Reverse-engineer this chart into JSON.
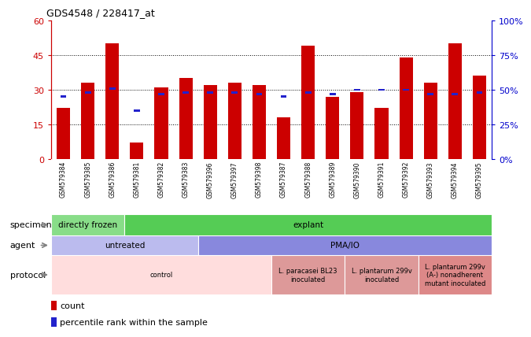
{
  "title": "GDS4548 / 228417_at",
  "samples": [
    "GSM579384",
    "GSM579385",
    "GSM579386",
    "GSM579381",
    "GSM579382",
    "GSM579383",
    "GSM579396",
    "GSM579397",
    "GSM579398",
    "GSM579387",
    "GSM579388",
    "GSM579389",
    "GSM579390",
    "GSM579391",
    "GSM579392",
    "GSM579393",
    "GSM579394",
    "GSM579395"
  ],
  "count_values": [
    22,
    33,
    50,
    7,
    31,
    35,
    32,
    33,
    32,
    18,
    49,
    27,
    29,
    22,
    44,
    33,
    50,
    36
  ],
  "percentile_pct": [
    45,
    48,
    51,
    35,
    47,
    48,
    48,
    48,
    47,
    45,
    48,
    47,
    50,
    50,
    50,
    47,
    47,
    48
  ],
  "bar_color": "#cc0000",
  "dot_color": "#2222cc",
  "ylim_left": [
    0,
    60
  ],
  "ylim_right": [
    0,
    100
  ],
  "yticks_left": [
    0,
    15,
    30,
    45,
    60
  ],
  "yticks_right": [
    0,
    25,
    50,
    75,
    100
  ],
  "ytick_labels_left": [
    "0",
    "15",
    "30",
    "45",
    "60"
  ],
  "ytick_labels_right": [
    "0%",
    "25%",
    "50%",
    "75%",
    "100%"
  ],
  "grid_values": [
    15,
    30,
    45
  ],
  "specimen_groups": [
    {
      "label": "directly frozen",
      "start": 0,
      "end": 3,
      "color": "#88dd88"
    },
    {
      "label": "explant",
      "start": 3,
      "end": 18,
      "color": "#55cc55"
    }
  ],
  "agent_groups": [
    {
      "label": "untreated",
      "start": 0,
      "end": 6,
      "color": "#bbbbee"
    },
    {
      "label": "PMA/IO",
      "start": 6,
      "end": 18,
      "color": "#8888dd"
    }
  ],
  "protocol_groups": [
    {
      "label": "control",
      "start": 0,
      "end": 9,
      "color": "#ffdddd"
    },
    {
      "label": "L. paracasei BL23\ninoculated",
      "start": 9,
      "end": 12,
      "color": "#dd9999"
    },
    {
      "label": "L. plantarum 299v\ninoculated",
      "start": 12,
      "end": 15,
      "color": "#dd9999"
    },
    {
      "label": "L. plantarum 299v\n(A-) nonadherent\nmutant inoculated",
      "start": 15,
      "end": 18,
      "color": "#dd8888"
    }
  ],
  "legend_items": [
    {
      "label": "count",
      "color": "#cc0000"
    },
    {
      "label": "percentile rank within the sample",
      "color": "#2222cc"
    }
  ],
  "bg_color": "#ffffff",
  "xtick_bg_color": "#cccccc",
  "left_axis_color": "#cc0000",
  "right_axis_color": "#0000cc"
}
